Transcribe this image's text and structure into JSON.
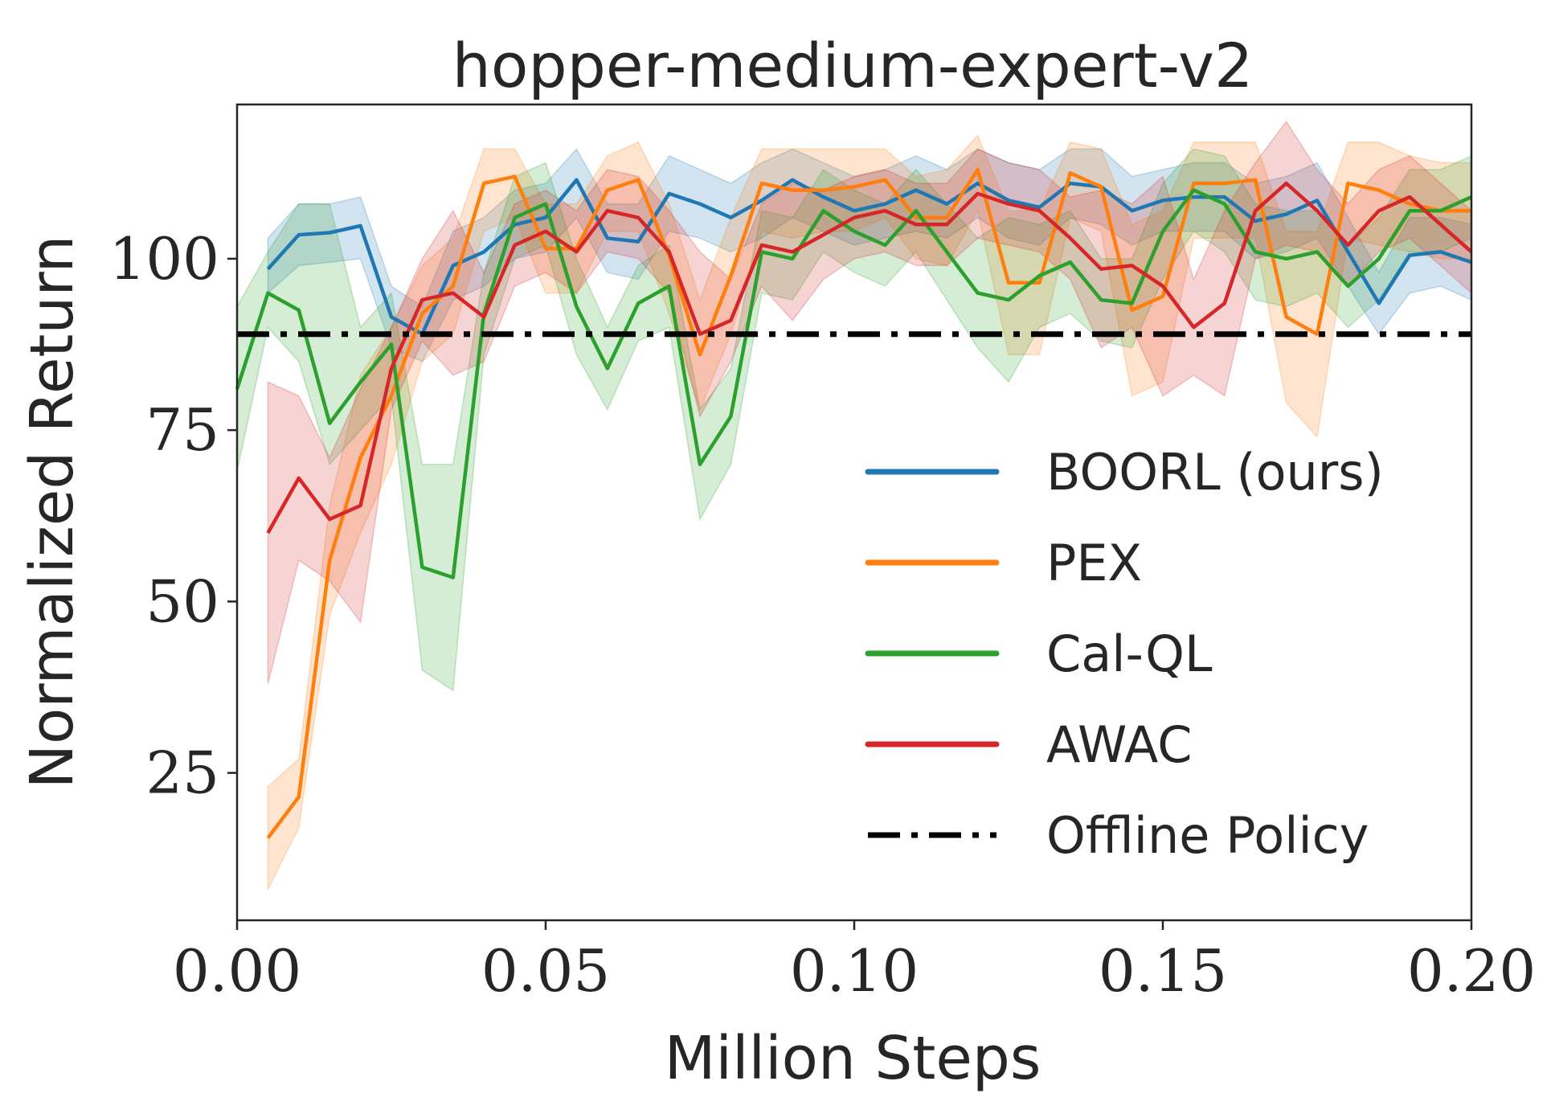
{
  "chart_data": {
    "type": "line",
    "title": "hopper-medium-expert-v2",
    "xlabel": "Million Steps",
    "ylabel": "Normalized Return",
    "xlim": [
      0.0,
      0.2
    ],
    "ylim": [
      3.5,
      122.5
    ],
    "xticks": [
      0.0,
      0.05,
      0.1,
      0.15,
      0.2
    ],
    "xtick_labels": [
      "0.00",
      "0.05",
      "0.10",
      "0.15",
      "0.20"
    ],
    "yticks": [
      25,
      50,
      75,
      100
    ],
    "ytick_labels": [
      "25",
      "50",
      "75",
      "100"
    ],
    "grid": false,
    "legend_position": "center-right",
    "series": [
      {
        "name": "BOORL (ours)",
        "color": "#1f77b4",
        "x": [
          0.005,
          0.01,
          0.015,
          0.02,
          0.025,
          0.03,
          0.035,
          0.04,
          0.045,
          0.05,
          0.055,
          0.06,
          0.065,
          0.07,
          0.075,
          0.08,
          0.085,
          0.09,
          0.095,
          0.1,
          0.105,
          0.11,
          0.115,
          0.12,
          0.125,
          0.13,
          0.135,
          0.14,
          0.145,
          0.15,
          0.155,
          0.16,
          0.165,
          0.17,
          0.175,
          0.18,
          0.185,
          0.19,
          0.195,
          0.2
        ],
        "y": [
          98.5,
          103.5,
          103.8,
          104.8,
          91.5,
          89,
          99,
          101,
          105,
          106,
          111.5,
          103,
          102.5,
          109.5,
          108,
          106,
          108.5,
          111.5,
          109,
          107,
          108,
          110,
          108,
          111,
          108.5,
          107.5,
          111,
          110.5,
          107,
          108.5,
          109,
          109,
          105.5,
          106.5,
          108.5,
          101,
          93.5,
          100.5,
          101,
          99.5
        ],
        "lower": [
          95,
          99,
          99.5,
          100,
          87,
          85,
          94,
          96,
          100,
          101,
          106,
          98,
          97,
          104,
          103,
          101,
          103,
          106,
          104,
          102,
          103,
          104,
          103,
          106,
          103,
          102,
          106,
          105,
          102,
          104,
          104,
          104,
          100,
          101,
          103,
          96,
          89,
          95,
          96,
          94
        ],
        "upper": [
          103,
          108,
          108,
          109,
          96,
          93,
          104,
          106,
          110,
          111,
          116,
          108,
          108,
          115,
          113,
          111,
          114,
          116,
          114,
          112,
          113,
          115,
          113,
          116,
          114,
          113,
          116,
          116,
          112,
          113,
          114,
          114,
          111,
          112,
          114,
          106,
          98,
          106,
          106,
          105
        ]
      },
      {
        "name": "PEX",
        "color": "#ff7f0e",
        "x": [
          0.005,
          0.01,
          0.015,
          0.02,
          0.025,
          0.03,
          0.035,
          0.04,
          0.045,
          0.05,
          0.055,
          0.06,
          0.065,
          0.07,
          0.075,
          0.08,
          0.085,
          0.09,
          0.095,
          0.1,
          0.105,
          0.11,
          0.115,
          0.12,
          0.125,
          0.13,
          0.135,
          0.14,
          0.145,
          0.15,
          0.155,
          0.16,
          0.165,
          0.17,
          0.175,
          0.18,
          0.185,
          0.19,
          0.195,
          0.2
        ],
        "y": [
          15.5,
          21.5,
          56,
          71,
          80,
          92,
          96,
          111,
          112,
          101.5,
          101.5,
          110,
          111.5,
          100.5,
          86,
          97.5,
          111,
          110,
          110,
          110.5,
          111.5,
          106,
          106,
          113,
          96.5,
          96.5,
          112.5,
          110.5,
          92.5,
          94.5,
          111,
          111,
          111.5,
          91.5,
          89,
          111,
          110,
          108,
          107,
          107
        ],
        "lower": [
          8,
          17,
          48,
          60,
          70,
          85,
          89,
          104,
          106,
          95,
          95,
          104,
          104,
          92,
          78,
          89,
          104,
          103,
          104,
          104,
          106,
          100,
          99,
          107,
          86,
          86,
          106,
          104,
          80,
          82,
          103,
          103,
          103,
          79,
          74,
          103,
          102,
          101,
          100,
          100
        ],
        "upper": [
          23,
          27,
          64,
          83,
          90,
          99,
          103,
          116,
          116,
          108,
          108,
          115,
          117,
          108,
          94,
          106,
          116,
          116,
          116,
          116,
          116,
          112,
          113,
          118,
          107,
          107,
          117,
          116,
          105,
          107,
          117,
          117,
          117,
          104,
          104,
          117,
          117,
          115,
          114,
          114
        ]
      },
      {
        "name": "Cal-QL",
        "color": "#2ca02c",
        "x": [
          0.0,
          0.005,
          0.01,
          0.015,
          0.02,
          0.025,
          0.03,
          0.035,
          0.04,
          0.045,
          0.05,
          0.055,
          0.06,
          0.065,
          0.07,
          0.075,
          0.08,
          0.085,
          0.09,
          0.095,
          0.1,
          0.105,
          0.11,
          0.115,
          0.12,
          0.125,
          0.13,
          0.135,
          0.14,
          0.145,
          0.15,
          0.155,
          0.16,
          0.165,
          0.17,
          0.175,
          0.18,
          0.185,
          0.19,
          0.195,
          0.2
        ],
        "y": [
          81,
          95,
          92.5,
          76,
          82,
          87.5,
          55,
          53.5,
          92,
          106,
          108,
          93,
          84,
          93.5,
          96,
          70,
          77,
          101,
          100,
          107,
          104,
          102,
          107,
          101,
          95,
          94,
          97.5,
          99.5,
          94,
          93.5,
          104,
          110,
          108,
          101,
          100,
          101,
          96,
          100,
          107,
          107,
          109
        ],
        "lower": [
          69,
          90,
          85,
          70,
          75,
          80,
          40,
          37,
          86,
          100,
          102,
          86,
          78,
          88,
          90,
          62,
          70,
          95,
          94,
          101,
          98,
          96,
          101,
          94,
          87,
          82,
          90,
          92,
          88,
          87,
          97,
          104,
          101,
          94,
          93,
          95,
          90,
          94,
          101,
          101,
          103
        ],
        "upper": [
          93,
          101,
          108,
          108,
          90,
          95,
          70,
          70,
          98,
          112,
          114,
          100,
          90,
          99,
          102,
          78,
          84,
          107,
          106,
          113,
          110,
          108,
          113,
          108,
          103,
          106,
          105,
          107,
          100,
          100,
          111,
          116,
          115,
          108,
          107,
          107,
          102,
          106,
          113,
          113,
          115
        ]
      },
      {
        "name": "AWAC",
        "color": "#d62728",
        "x": [
          0.005,
          0.01,
          0.015,
          0.02,
          0.025,
          0.03,
          0.035,
          0.04,
          0.045,
          0.05,
          0.055,
          0.06,
          0.065,
          0.07,
          0.075,
          0.08,
          0.085,
          0.09,
          0.095,
          0.1,
          0.105,
          0.11,
          0.115,
          0.12,
          0.125,
          0.13,
          0.135,
          0.14,
          0.145,
          0.15,
          0.155,
          0.16,
          0.165,
          0.17,
          0.175,
          0.18,
          0.185,
          0.19,
          0.195,
          0.2
        ],
        "y": [
          60,
          68,
          62,
          64,
          84,
          94,
          95,
          91.5,
          102,
          104,
          101,
          107,
          106,
          101,
          89,
          91,
          102,
          101,
          103.5,
          106,
          107,
          105,
          105,
          109.5,
          108,
          107,
          103,
          98.5,
          99,
          96,
          90,
          93.5,
          107,
          111,
          107,
          102,
          107,
          109,
          105,
          101
        ],
        "lower": [
          38,
          56,
          53,
          47,
          78,
          88,
          83,
          85,
          96,
          98,
          95,
          101,
          100,
          95,
          77,
          85,
          96,
          91,
          97,
          100,
          101,
          99,
          99,
          103,
          102,
          101,
          97,
          87,
          90,
          80,
          83,
          80,
          100,
          102,
          101,
          96,
          101,
          103,
          99,
          95
        ],
        "upper": [
          82,
          80,
          71,
          81,
          90,
          100,
          107,
          98,
          108,
          110,
          107,
          113,
          112,
          107,
          101,
          97,
          108,
          111,
          110,
          112,
          113,
          111,
          111,
          116,
          114,
          113,
          109,
          110,
          108,
          112,
          97,
          107,
          114,
          120,
          113,
          108,
          113,
          115,
          111,
          107
        ]
      },
      {
        "name": "Offline Policy",
        "color": "#000000",
        "style": "dashdot",
        "x": [
          0.0,
          0.2
        ],
        "y": [
          89,
          89
        ]
      }
    ]
  }
}
